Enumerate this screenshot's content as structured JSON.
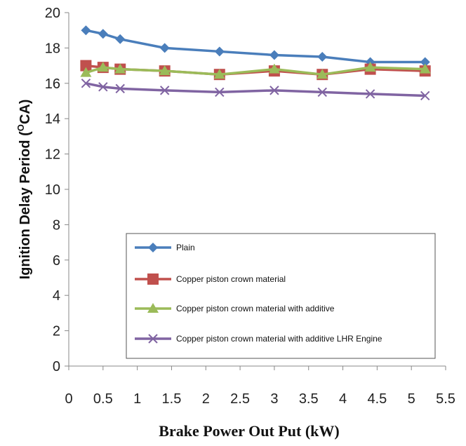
{
  "chart_data": {
    "type": "line",
    "title": "",
    "xlabel": "Brake Power Out Put (kW)",
    "ylabel": "Ignition Delay Period (°CA)",
    "xlim": [
      0,
      5.5
    ],
    "ylim": [
      0,
      20
    ],
    "x_ticks": [
      "0",
      "0.5",
      "1",
      "1.5",
      "2",
      "2.5",
      "3",
      "3.5",
      "4",
      "4.5",
      "5",
      "5.5"
    ],
    "y_ticks": [
      "0",
      "2",
      "4",
      "6",
      "8",
      "10",
      "12",
      "14",
      "16",
      "18",
      "20"
    ],
    "grid": false,
    "legend_position": "inside lower-right",
    "series": [
      {
        "name": "Plain",
        "color": "#4a7ebb",
        "marker": "diamond",
        "x": [
          0.25,
          0.5,
          0.75,
          1.4,
          2.2,
          3.0,
          3.7,
          4.4,
          5.2
        ],
        "y": [
          19.0,
          18.8,
          18.5,
          18.0,
          17.8,
          17.6,
          17.5,
          17.2,
          17.2
        ]
      },
      {
        "name": "Copper piston crown material",
        "color": "#c0504d",
        "marker": "square",
        "x": [
          0.25,
          0.5,
          0.75,
          1.4,
          2.2,
          3.0,
          3.7,
          4.4,
          5.2
        ],
        "y": [
          17.0,
          16.9,
          16.8,
          16.7,
          16.5,
          16.7,
          16.5,
          16.8,
          16.7
        ]
      },
      {
        "name": "Copper piston crown material  with additive",
        "color": "#9bbb59",
        "marker": "triangle",
        "x": [
          0.25,
          0.5,
          0.75,
          1.4,
          2.2,
          3.0,
          3.7,
          4.4,
          5.2
        ],
        "y": [
          16.6,
          16.9,
          16.8,
          16.7,
          16.5,
          16.8,
          16.5,
          16.9,
          16.8
        ]
      },
      {
        "name": "Copper piston crown material with additive  LHR Engine",
        "color": "#8064a2",
        "marker": "x",
        "x": [
          0.25,
          0.5,
          0.75,
          1.4,
          2.2,
          3.0,
          3.7,
          4.4,
          5.2
        ],
        "y": [
          16.0,
          15.8,
          15.7,
          15.6,
          15.5,
          15.6,
          15.5,
          15.4,
          15.3
        ]
      }
    ]
  }
}
